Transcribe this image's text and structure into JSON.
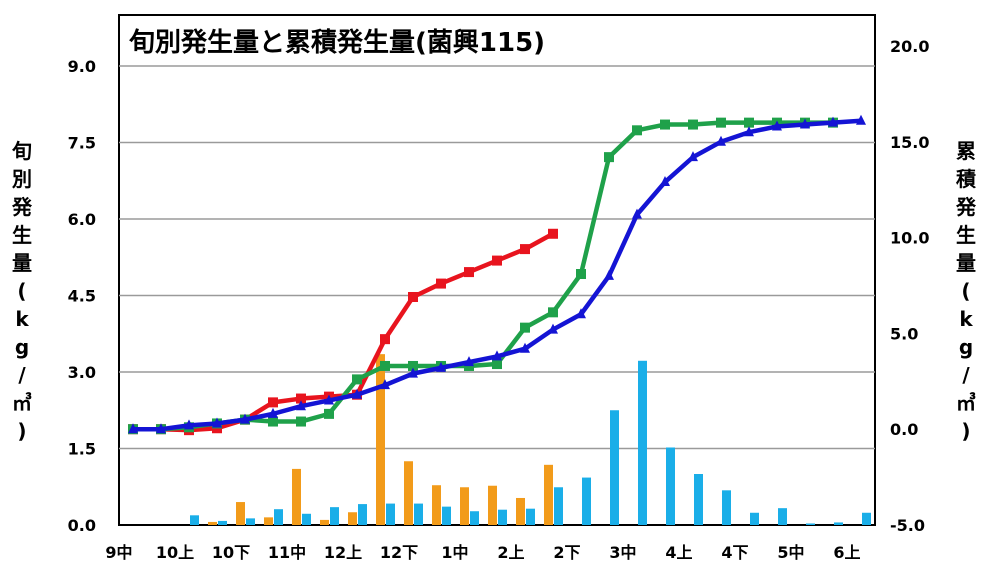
{
  "chart_data": {
    "type": "bar+line",
    "title": "旬別発生量と累積発生量(菌興115)",
    "ylabel_left": "旬別発生量(kg/㎥)",
    "ylabel_right": "累積発生量(kg/㎥)",
    "y_left_lim": [
      0,
      9
    ],
    "y_left_ticks": [
      "0.0",
      "1.5",
      "3.0",
      "4.5",
      "6.0",
      "7.5",
      "9.0"
    ],
    "y_right_lim": [
      -5,
      20
    ],
    "y_right_ticks": [
      "-5.0",
      "0.0",
      "5.0",
      "10.0",
      "15.0",
      "20.0"
    ],
    "x_tick_labels": [
      "9中",
      "10上",
      "10下",
      "11中",
      "12上",
      "12下",
      "1中",
      "2上",
      "2下",
      "3中",
      "4上",
      "4下",
      "5中",
      "6上"
    ],
    "grid": true,
    "series": [
      {
        "name": "",
        "type": "bar",
        "axis": "left",
        "color": "#f29b1a",
        "values": [
          0,
          0,
          0,
          0.06,
          0.45,
          0.15,
          1.1,
          0.1,
          0.25,
          3.35,
          1.25,
          0.78,
          0.74,
          0.77,
          0.53,
          1.18,
          0,
          0,
          0,
          0,
          0,
          0,
          0,
          0,
          0,
          0
        ]
      },
      {
        "name": "",
        "type": "bar",
        "axis": "left",
        "color": "#1aaee8",
        "values": [
          0,
          0,
          0.19,
          0.08,
          0.13,
          0.31,
          0.22,
          0.35,
          0.41,
          0.42,
          0.42,
          0.36,
          0.27,
          0.3,
          0.32,
          0.74,
          0.93,
          2.25,
          3.22,
          1.52,
          1.0,
          0.68,
          0.24,
          0.33,
          0.03,
          0.05,
          0.24
        ]
      },
      {
        "name": "",
        "type": "line",
        "axis": "right",
        "color": "#e8141e",
        "marker": "square",
        "values": [
          0,
          0,
          -0.05,
          0.05,
          0.5,
          1.4,
          1.6,
          1.7,
          1.8,
          4.7,
          6.9,
          7.6,
          8.2,
          8.8,
          9.4,
          10.2
        ]
      },
      {
        "name": "",
        "type": "line",
        "axis": "right",
        "color": "#1fa14a",
        "marker": "square",
        "values": [
          0,
          0,
          0.1,
          0.3,
          0.5,
          0.4,
          0.4,
          0.8,
          2.6,
          3.3,
          3.3,
          3.3,
          3.3,
          3.4,
          5.3,
          6.1,
          8.1,
          14.2,
          15.6,
          15.9,
          15.9,
          16.0,
          16.0,
          16.0,
          16.0,
          16.0
        ]
      },
      {
        "name": "",
        "type": "line",
        "axis": "right",
        "color": "#1414d4",
        "marker": "triangle",
        "values": [
          0,
          0,
          0.2,
          0.3,
          0.5,
          0.8,
          1.2,
          1.5,
          1.8,
          2.3,
          2.9,
          3.2,
          3.5,
          3.8,
          4.2,
          5.2,
          6.0,
          8.0,
          11.2,
          12.9,
          14.2,
          15.0,
          15.5,
          15.8,
          15.9,
          16.0,
          16.1
        ]
      }
    ]
  }
}
